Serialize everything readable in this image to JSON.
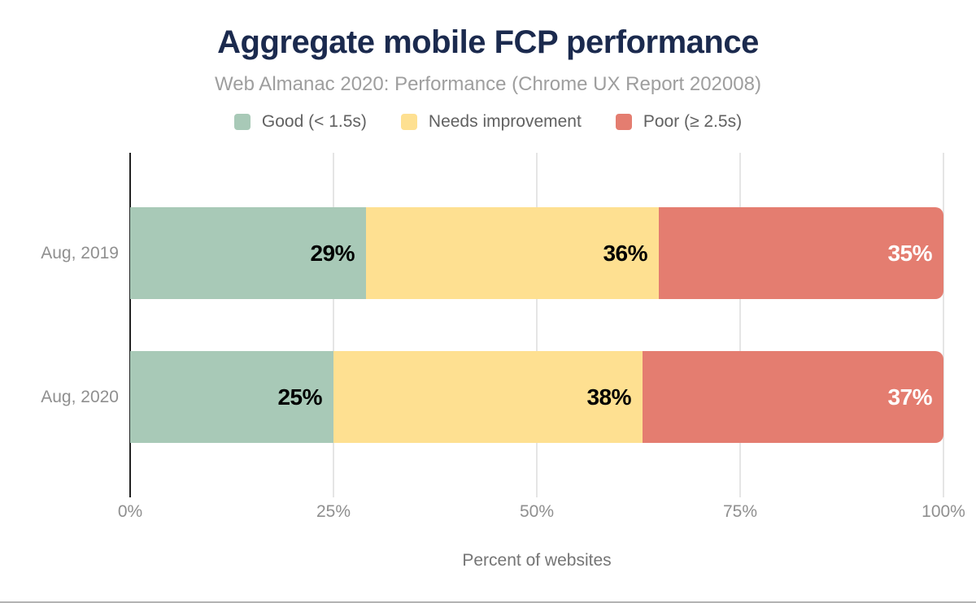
{
  "title": "Aggregate mobile FCP performance",
  "subtitle": "Web Almanac 2020: Performance (Chrome UX Report 202008)",
  "colors": {
    "title": "#1b2a4e",
    "subtitle": "#9e9e9e",
    "axis_line": "#212121",
    "gridline": "#e5e5e5",
    "tick_label": "#8f8f8f",
    "category_label": "#8f8f8f",
    "axis_title": "#757575",
    "bottom_rule": "#b3b3b3"
  },
  "chart_data": {
    "type": "bar",
    "stacked": true,
    "orientation": "horizontal",
    "title": "Aggregate mobile FCP performance",
    "subtitle": "Web Almanac 2020: Performance (Chrome UX Report 202008)",
    "categories": [
      "Aug, 2019",
      "Aug, 2020"
    ],
    "series": [
      {
        "name": "Good (< 1.5s)",
        "color": "#a8c9b7",
        "label_color": "#000000",
        "values": [
          29,
          25
        ]
      },
      {
        "name": "Needs improvement",
        "color": "#fee091",
        "label_color": "#000000",
        "values": [
          36,
          38
        ]
      },
      {
        "name": "Poor (≥ 2.5s)",
        "color": "#e47d70",
        "label_color": "#ffffff",
        "values": [
          35,
          37
        ]
      }
    ],
    "data_labels": [
      [
        "29%",
        "36%",
        "35%"
      ],
      [
        "25%",
        "38%",
        "37%"
      ]
    ],
    "xlabel": "Percent of websites",
    "ylabel": "",
    "xlim": [
      0,
      100
    ],
    "x_ticks": [
      {
        "value": 0,
        "label": "0%"
      },
      {
        "value": 25,
        "label": "25%"
      },
      {
        "value": 50,
        "label": "50%"
      },
      {
        "value": 75,
        "label": "75%"
      },
      {
        "value": 100,
        "label": "100%"
      }
    ],
    "grid": true,
    "legend_position": "top"
  }
}
